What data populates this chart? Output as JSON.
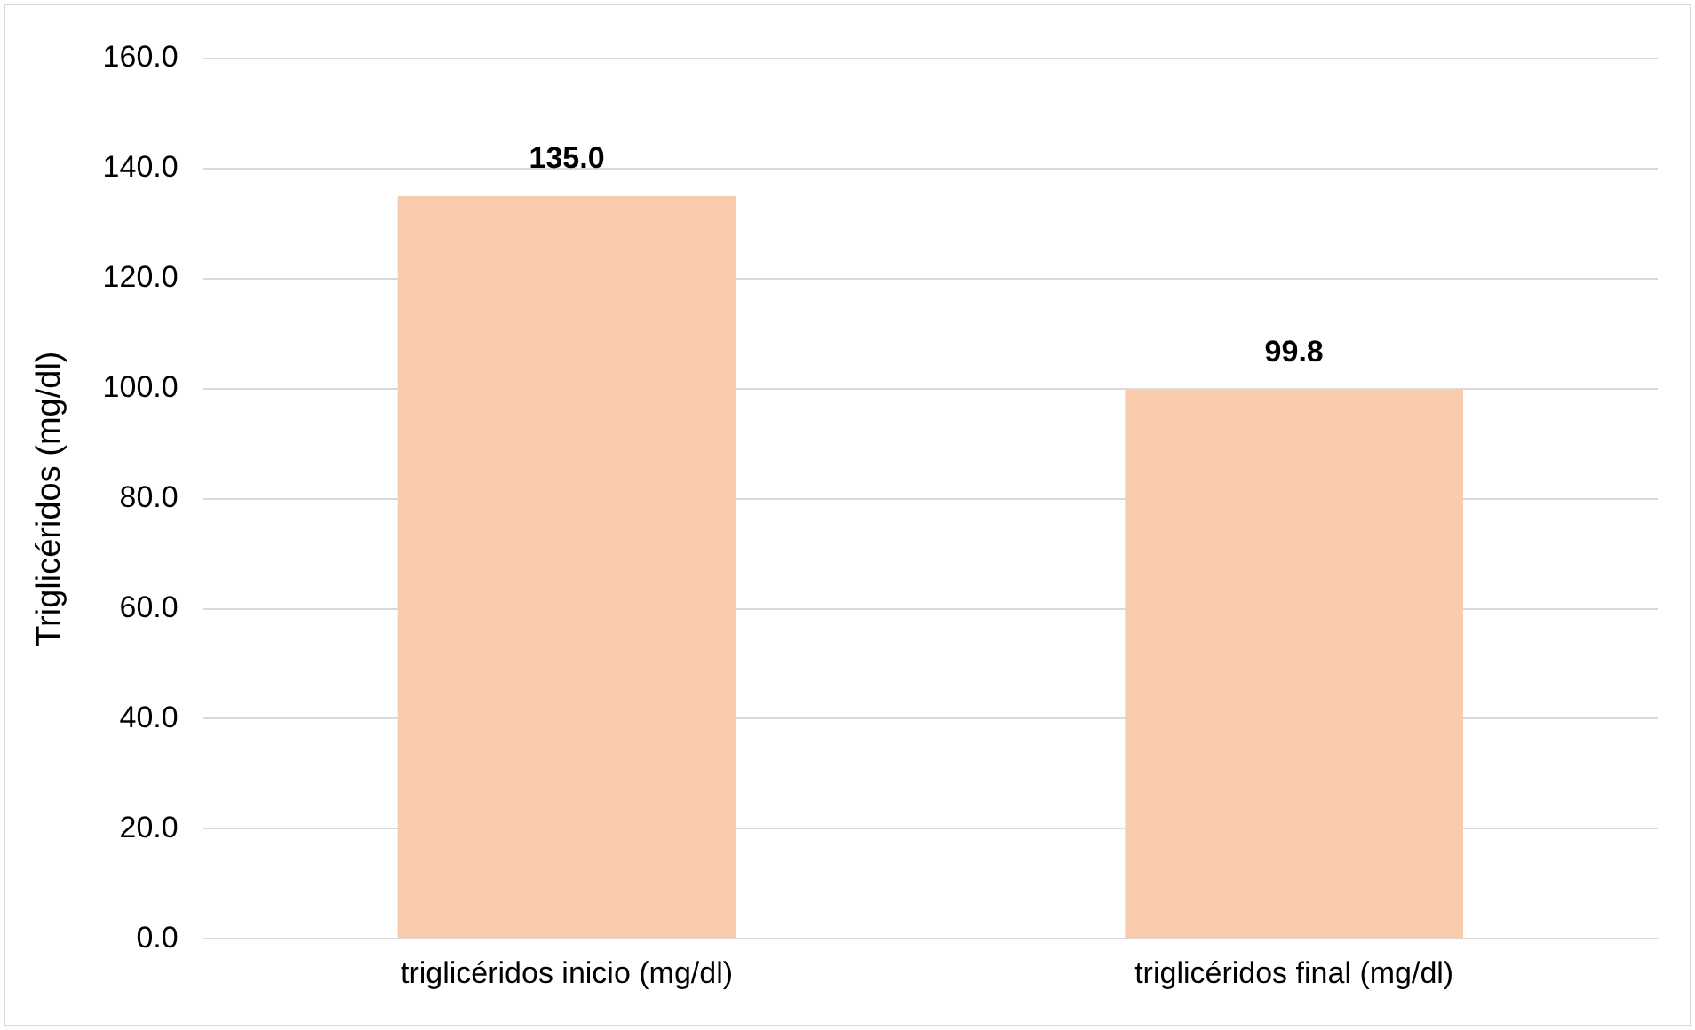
{
  "chart_data": {
    "type": "bar",
    "ylabel": "Triglicéridos (mg/dl)",
    "categories": [
      "triglicéridos inicio (mg/dl)",
      "triglicéridos final (mg/dl)"
    ],
    "values": [
      135.0,
      99.8
    ],
    "color": "#f8cbad",
    "value_labels": [
      "135.0",
      "99.8"
    ],
    "ylim": [
      0,
      160
    ],
    "yticks": [
      {
        "value": 0,
        "label": "0.0"
      },
      {
        "value": 20,
        "label": "20.0"
      },
      {
        "value": 40,
        "label": "40.0"
      },
      {
        "value": 60,
        "label": "60.0"
      },
      {
        "value": 80,
        "label": "80.0"
      },
      {
        "value": 100,
        "label": "100.0"
      },
      {
        "value": 120,
        "label": "120.0"
      },
      {
        "value": 140,
        "label": "140.0"
      },
      {
        "value": 160,
        "label": "160.0"
      }
    ],
    "grid": "y",
    "legend": false
  }
}
